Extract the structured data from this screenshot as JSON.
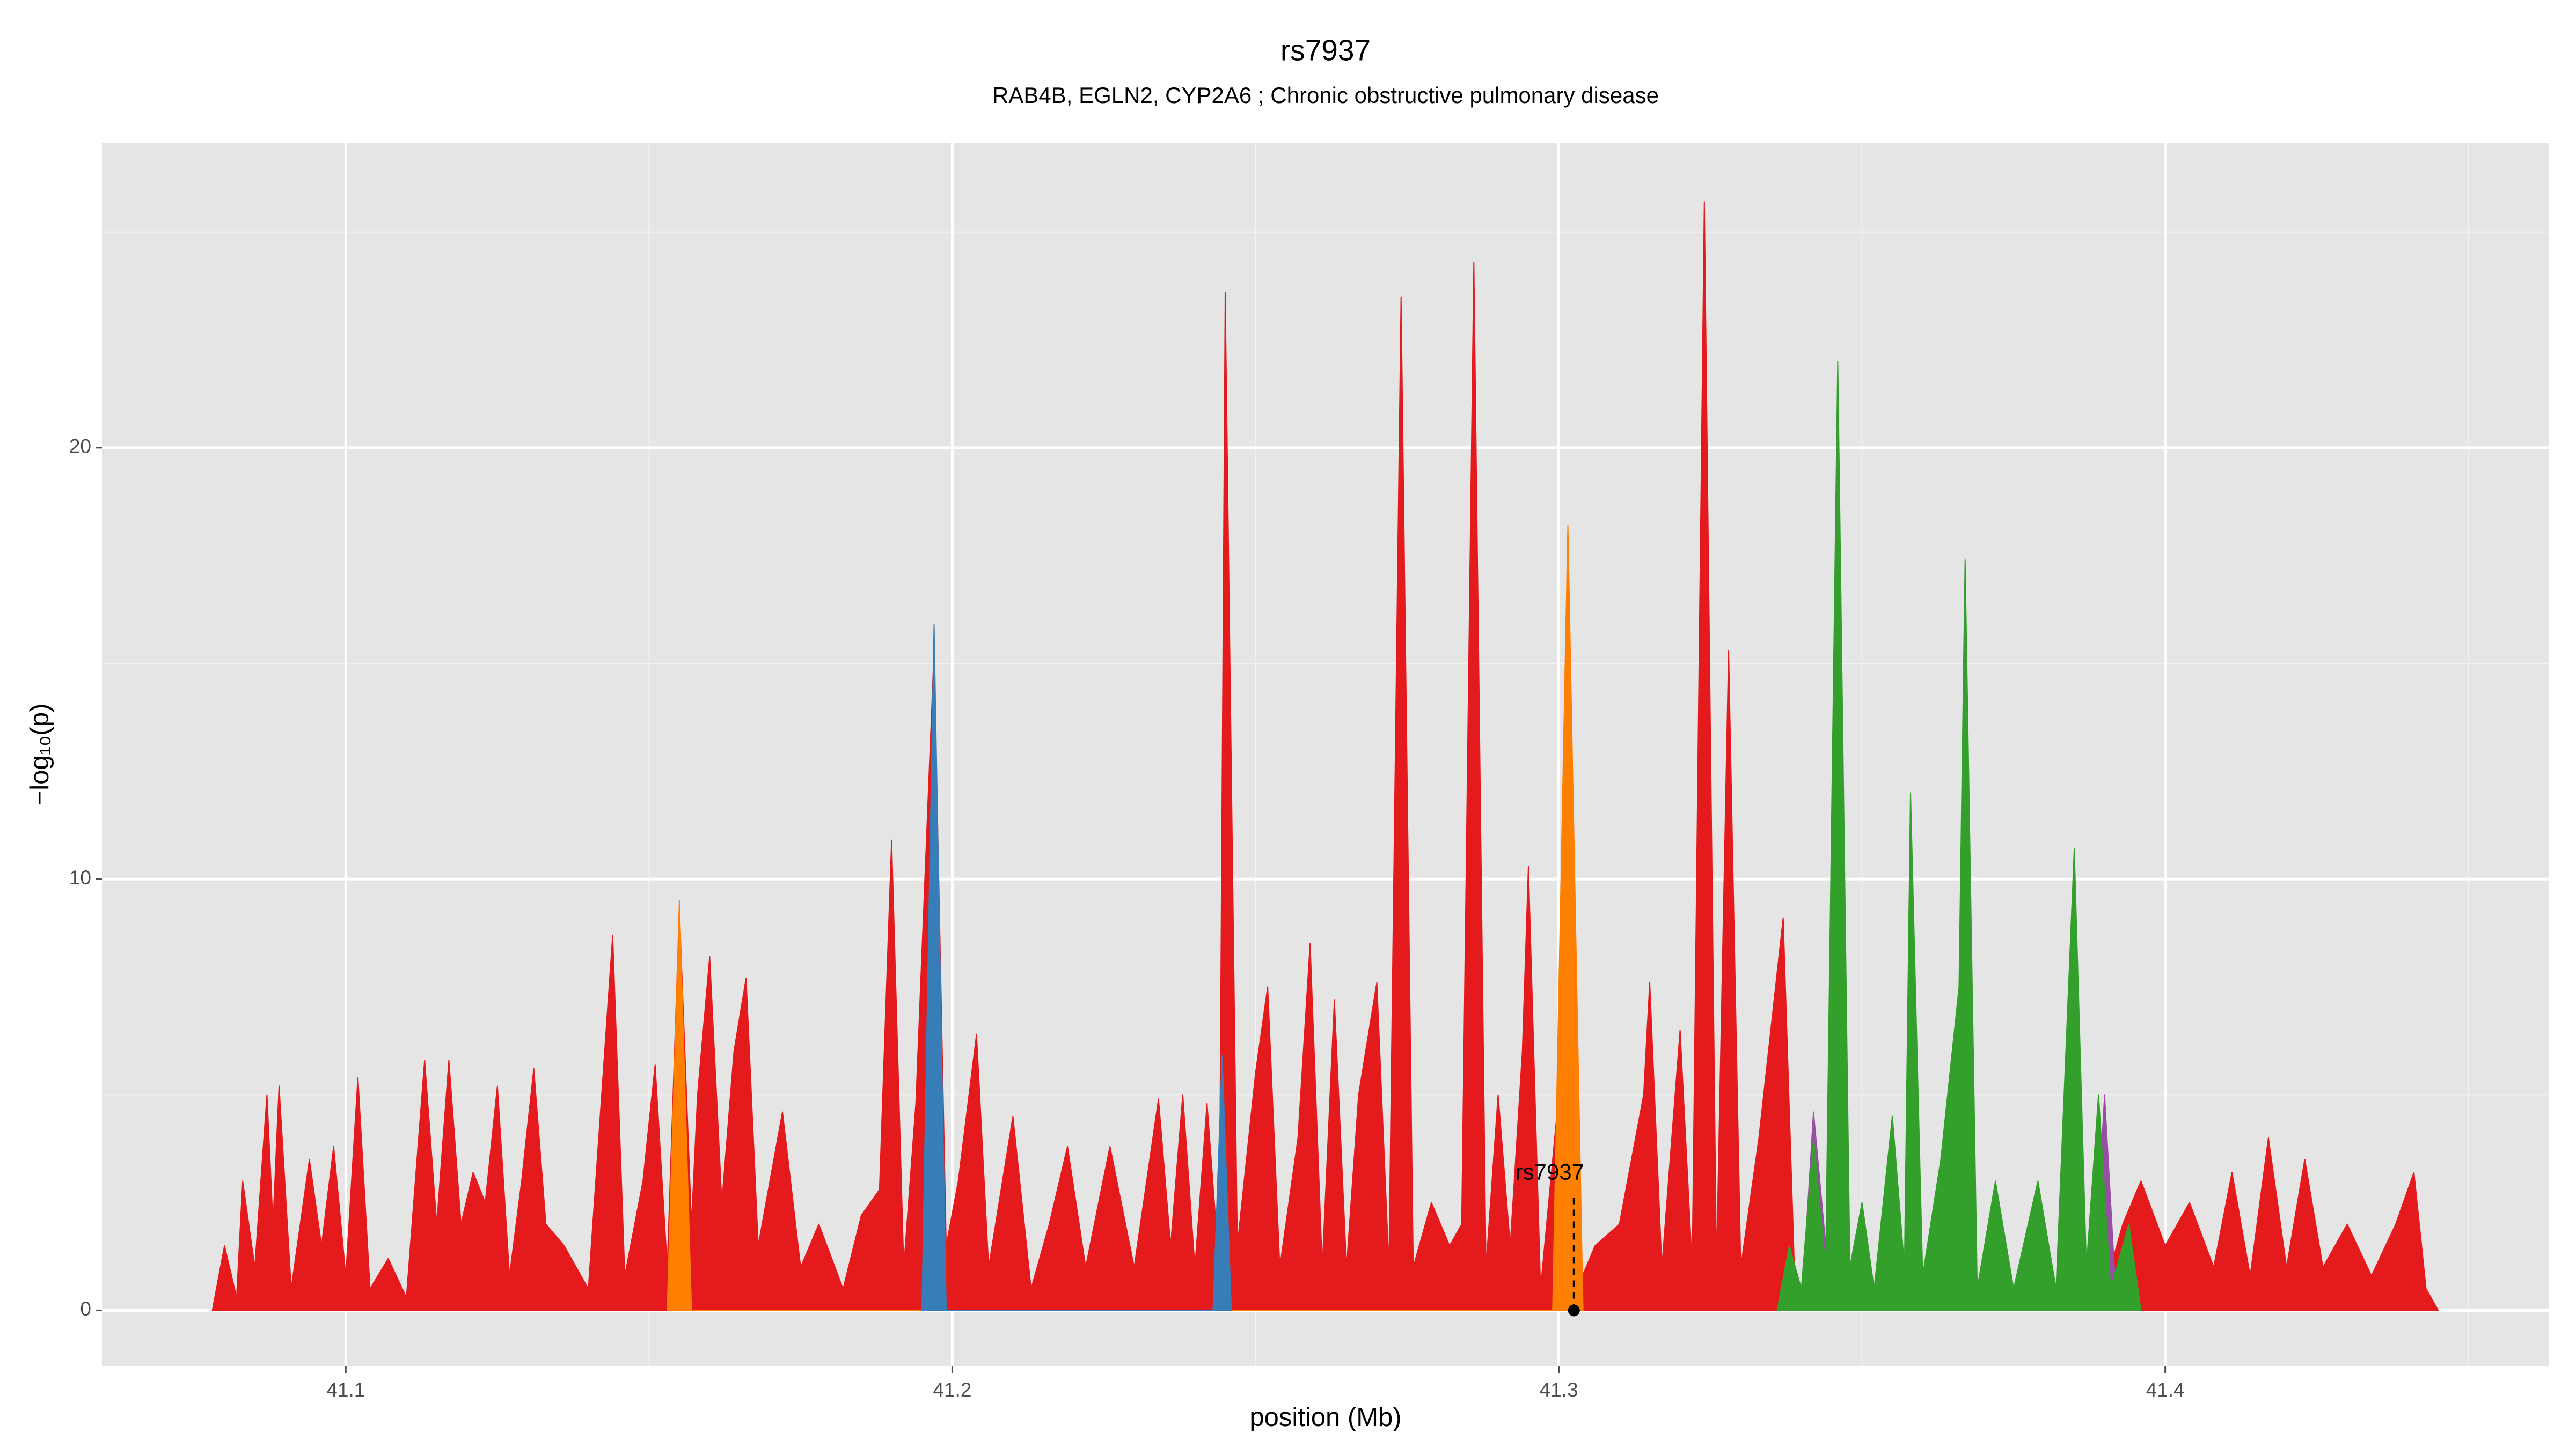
{
  "chart_data": {
    "type": "area",
    "title": "rs7937",
    "subtitle": "RAB4B, EGLN2, CYP2A6 ; Chronic obstructive pulmonary disease",
    "x_label": "position (Mb)",
    "y_label": "−log₁₀(p)",
    "xlim": [
      41.0598,
      41.4633
    ],
    "ylim": [
      -1.3,
      27.06
    ],
    "xticks": [
      41.1,
      41.2,
      41.3,
      41.4
    ],
    "yticks": [
      0,
      10,
      20
    ],
    "xminor": [
      41.15,
      41.25,
      41.35,
      41.45
    ],
    "yminor": [
      5,
      15,
      25
    ],
    "grid": true,
    "series": [
      {
        "color": "#e41a1c",
        "x": [
          41.078,
          41.08,
          41.082,
          41.083,
          41.085,
          41.087,
          41.088,
          41.089,
          41.091,
          41.094,
          41.096,
          41.098,
          41.1,
          41.102,
          41.104,
          41.107,
          41.11,
          41.113,
          41.115,
          41.117,
          41.119,
          41.121,
          41.123,
          41.125,
          41.127,
          41.129,
          41.131,
          41.133,
          41.136,
          41.14,
          41.144,
          41.146,
          41.149,
          41.151,
          41.153,
          41.155,
          41.157,
          41.158,
          41.16,
          41.162,
          41.164,
          41.166,
          41.168,
          41.172,
          41.175,
          41.178,
          41.182,
          41.185,
          41.188,
          41.19,
          41.192,
          41.194,
          41.197,
          41.199,
          41.201,
          41.204,
          41.206,
          41.21,
          41.213,
          41.216,
          41.219,
          41.222,
          41.226,
          41.23,
          41.234,
          41.236,
          41.238,
          41.24,
          41.242,
          41.244,
          41.245,
          41.247,
          41.25,
          41.252,
          41.254,
          41.257,
          41.259,
          41.261,
          41.263,
          41.265,
          41.267,
          41.27,
          41.272,
          41.274,
          41.276,
          41.279,
          41.282,
          41.284,
          41.286,
          41.288,
          41.29,
          41.292,
          41.294,
          41.295,
          41.297,
          41.3,
          41.301,
          41.303,
          41.306,
          41.31,
          41.314,
          41.315,
          41.317,
          41.32,
          41.322,
          41.324,
          41.326,
          41.328,
          41.33,
          41.333,
          41.337,
          41.339,
          41.345,
          41.36,
          41.375,
          41.39,
          41.393,
          41.396,
          41.4,
          41.404,
          41.408,
          41.411,
          41.414,
          41.417,
          41.42,
          41.423,
          41.426,
          41.43,
          41.434,
          41.438,
          41.441,
          41.443,
          41.445
        ],
        "values": [
          0,
          1.5,
          0.3,
          3,
          1,
          5,
          2,
          5.2,
          0.5,
          3.5,
          1.5,
          3.8,
          0.8,
          5.4,
          0.5,
          1.2,
          0.3,
          5.8,
          2,
          5.8,
          2,
          3.2,
          2.5,
          5.2,
          0.8,
          3,
          5.6,
          2,
          1.5,
          0.5,
          8.7,
          0.8,
          3,
          5.7,
          1,
          9.3,
          2,
          5,
          8.2,
          2.5,
          6,
          7.7,
          1.5,
          4.6,
          1,
          2,
          0.5,
          2.2,
          2.8,
          10.9,
          1,
          4.8,
          15.3,
          1.5,
          3,
          6.4,
          1,
          4.5,
          0.5,
          2,
          3.8,
          1,
          3.8,
          1,
          4.9,
          1.5,
          5,
          1,
          4.8,
          1,
          23.6,
          1.5,
          5.5,
          7.5,
          1,
          4,
          8.5,
          1,
          7.2,
          1,
          5,
          7.6,
          1,
          23.5,
          1,
          2.5,
          1.5,
          2,
          24.3,
          1,
          5,
          1.5,
          6,
          10.3,
          0.5,
          5,
          6.8,
          0.5,
          1.5,
          2,
          5,
          7.6,
          1,
          6.5,
          1,
          25.7,
          1,
          15.3,
          1,
          4,
          9.1,
          0.3,
          0.3,
          0.2,
          0.3,
          0.5,
          2,
          3,
          1.5,
          2.5,
          1,
          3.2,
          0.8,
          4,
          1,
          3.5,
          1,
          2,
          0.8,
          2,
          3.2,
          0.5,
          0
        ]
      },
      {
        "color": "#ff7f00",
        "x": [
          41.153,
          41.155,
          41.157,
          41.299,
          41.3015,
          41.304
        ],
        "values": [
          0,
          9.5,
          0,
          0,
          18.2,
          0
        ]
      },
      {
        "color": "#377eb8",
        "x": [
          41.195,
          41.197,
          41.199,
          41.243,
          41.2445,
          41.246
        ],
        "values": [
          0,
          15.9,
          0,
          0,
          5.9,
          0
        ]
      },
      {
        "color": "#984ea3",
        "x": [
          41.34,
          41.342,
          41.345,
          41.388,
          41.39,
          41.392
        ],
        "values": [
          0,
          4.6,
          0,
          0,
          5,
          0
        ]
      },
      {
        "color": "#33a02c",
        "x": [
          41.336,
          41.338,
          41.34,
          41.342,
          41.344,
          41.346,
          41.348,
          41.35,
          41.352,
          41.355,
          41.357,
          41.358,
          41.36,
          41.363,
          41.366,
          41.367,
          41.369,
          41.372,
          41.375,
          41.379,
          41.382,
          41.385,
          41.387,
          41.389,
          41.391,
          41.394,
          41.396
        ],
        "values": [
          0,
          1.5,
          0.5,
          4,
          1,
          22,
          1,
          2.5,
          0.5,
          4.5,
          1,
          12,
          0.8,
          3.5,
          7.5,
          17.4,
          0.5,
          3,
          0.5,
          3,
          0.5,
          10.7,
          1,
          5,
          0.5,
          2,
          0
        ]
      }
    ],
    "annotation": {
      "text": "rs7937",
      "x": 41.3025,
      "y": 0
    }
  }
}
